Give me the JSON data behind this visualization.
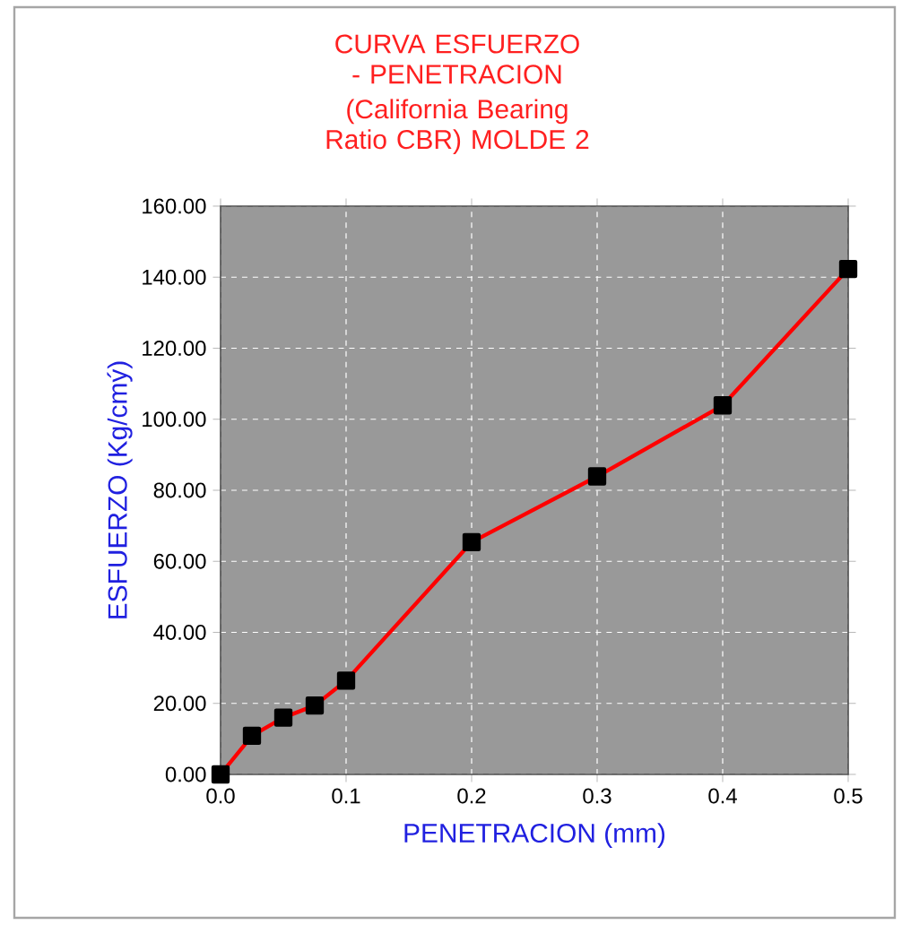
{
  "chart_data": {
    "type": "line",
    "title": "CURVA ESFUERZO - PENETRACION",
    "subtitle": "(California Bearing Ratio CBR) MOLDE 2",
    "xlabel": "PENETRACION (mm)",
    "ylabel": "ESFUERZO (Kg/cmý)",
    "x": [
      0,
      0.025,
      0.05,
      0.075,
      0.1,
      0.2,
      0.3,
      0.4,
      0.5
    ],
    "series": [
      {
        "color": "#ff0000",
        "values": [
          0,
          10.9,
          16.0,
          19.4,
          26.4,
          65.4,
          83.9,
          103.9,
          142.3
        ]
      }
    ],
    "xlim": [
      0,
      0.5
    ],
    "ylim": [
      0,
      160
    ],
    "xticks": [
      {
        "value": 0,
        "label": "0.0"
      },
      {
        "value": 0.1,
        "label": "0.1"
      },
      {
        "value": 0.2,
        "label": "0.2"
      },
      {
        "value": 0.3,
        "label": "0.3"
      },
      {
        "value": 0.4,
        "label": "0.4"
      },
      {
        "value": 0.5,
        "label": "0.5"
      }
    ],
    "yticks": [
      {
        "value": 0,
        "label": "0.00"
      },
      {
        "value": 20,
        "label": "20.00"
      },
      {
        "value": 40,
        "label": "40.00"
      },
      {
        "value": 60,
        "label": "60.00"
      },
      {
        "value": 80,
        "label": "80.00"
      },
      {
        "value": 100,
        "label": "100.00"
      },
      {
        "value": 120,
        "label": "120.00"
      },
      {
        "value": 140,
        "label": "140.00"
      },
      {
        "value": 160,
        "label": "160.00"
      }
    ],
    "grid": true,
    "marker": "square",
    "line_style": "solid"
  }
}
